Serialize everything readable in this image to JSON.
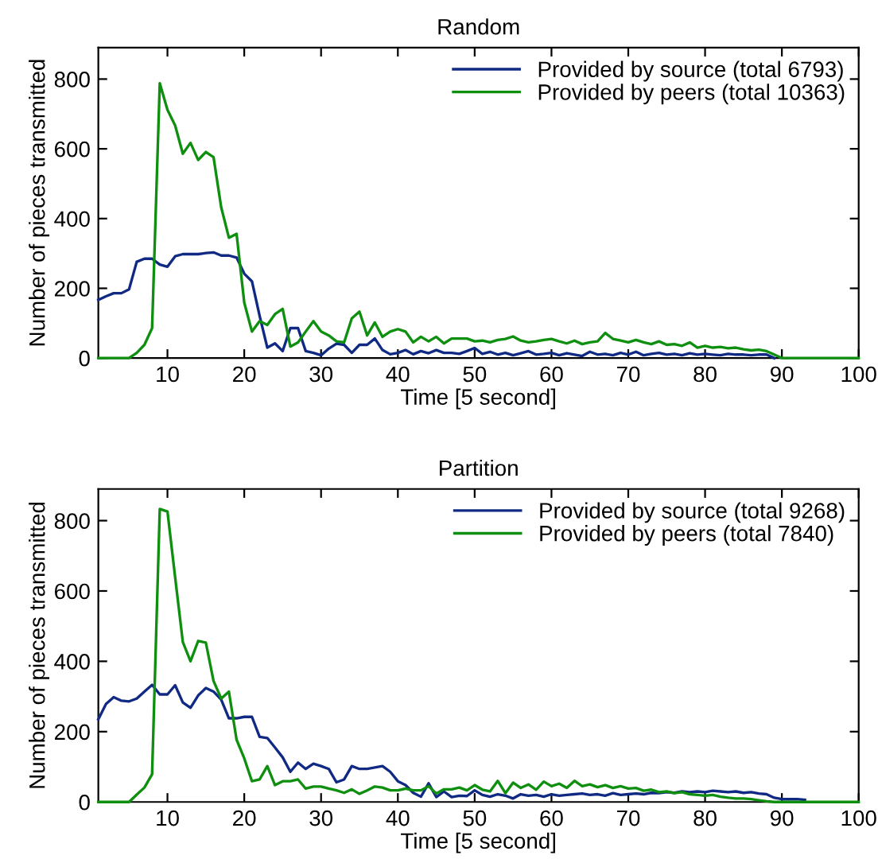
{
  "chart_data": [
    {
      "type": "line",
      "title": "Random",
      "x": [
        1,
        2,
        3,
        4,
        5,
        6,
        7,
        8,
        9,
        10,
        11,
        12,
        13,
        14,
        15,
        16,
        17,
        18,
        19,
        20,
        21,
        22,
        23,
        24,
        25,
        26,
        27,
        28,
        29,
        30,
        31,
        32,
        33,
        34,
        35,
        36,
        37,
        38,
        39,
        40,
        41,
        42,
        43,
        44,
        45,
        46,
        47,
        48,
        49,
        50,
        51,
        52,
        53,
        54,
        55,
        56,
        57,
        58,
        59,
        60,
        61,
        62,
        63,
        64,
        65,
        66,
        67,
        68,
        69,
        70,
        71,
        72,
        73,
        74,
        75,
        76,
        77,
        78,
        79,
        80,
        81,
        82,
        83,
        84,
        85,
        86,
        87,
        88,
        89,
        90,
        91,
        92,
        93,
        94,
        95,
        96,
        97,
        98,
        99,
        100
      ],
      "xlabel": "Time [5 second]",
      "ylabel": "Number of pieces transmitted",
      "xlim": [
        1,
        100
      ],
      "xticks": [
        10,
        20,
        30,
        40,
        50,
        60,
        70,
        80,
        90,
        100
      ],
      "ylim": [
        0,
        890
      ],
      "yticks": [
        0,
        200,
        400,
        600,
        800
      ],
      "grid": false,
      "legend": "top right",
      "marker": "none",
      "line_style": "solid",
      "series": [
        {
          "name": "Provided by source (total 6793)",
          "color": "#102a83",
          "values": [
            167,
            177,
            186,
            186,
            197,
            276,
            285,
            285,
            268,
            262,
            292,
            298,
            298,
            298,
            301,
            303,
            294,
            294,
            288,
            242,
            220,
            121,
            30,
            42,
            20,
            86,
            86,
            20,
            15,
            8,
            27,
            41,
            38,
            15,
            38,
            38,
            56,
            23,
            11,
            15,
            23,
            11,
            20,
            14,
            23,
            15,
            15,
            12,
            20,
            29,
            12,
            18,
            10,
            15,
            8,
            14,
            20,
            10,
            12,
            15,
            8,
            14,
            10,
            6,
            18,
            10,
            12,
            8,
            15,
            10,
            18,
            8,
            12,
            15,
            10,
            12,
            8,
            14,
            10,
            12,
            10,
            8,
            12,
            10,
            10,
            8,
            10,
            10,
            0,
            null,
            null,
            null,
            null,
            null,
            null,
            null,
            null,
            null,
            null,
            null
          ]
        },
        {
          "name": "Provided by peers (total 10363)",
          "color": "#0f8f0f",
          "values": [
            0,
            0,
            0,
            0,
            0,
            15,
            38,
            86,
            788,
            712,
            667,
            586,
            617,
            568,
            591,
            576,
            432,
            345,
            356,
            159,
            76,
            106,
            95,
            126,
            141,
            33,
            45,
            76,
            106,
            76,
            65,
            48,
            45,
            114,
            133,
            65,
            102,
            61,
            76,
            83,
            76,
            45,
            61,
            48,
            61,
            42,
            56,
            56,
            56,
            48,
            50,
            45,
            52,
            55,
            62,
            50,
            45,
            48,
            52,
            55,
            48,
            42,
            50,
            40,
            45,
            48,
            72,
            55,
            50,
            45,
            52,
            45,
            40,
            48,
            38,
            40,
            35,
            45,
            30,
            35,
            30,
            32,
            28,
            30,
            25,
            22,
            24,
            20,
            10,
            0,
            0,
            0,
            0,
            0,
            0,
            0,
            0,
            0,
            0,
            0
          ]
        }
      ]
    },
    {
      "type": "line",
      "title": "Partition",
      "x": [
        1,
        2,
        3,
        4,
        5,
        6,
        7,
        8,
        9,
        10,
        11,
        12,
        13,
        14,
        15,
        16,
        17,
        18,
        19,
        20,
        21,
        22,
        23,
        24,
        25,
        26,
        27,
        28,
        29,
        30,
        31,
        32,
        33,
        34,
        35,
        36,
        37,
        38,
        39,
        40,
        41,
        42,
        43,
        44,
        45,
        46,
        47,
        48,
        49,
        50,
        51,
        52,
        53,
        54,
        55,
        56,
        57,
        58,
        59,
        60,
        61,
        62,
        63,
        64,
        65,
        66,
        67,
        68,
        69,
        70,
        71,
        72,
        73,
        74,
        75,
        76,
        77,
        78,
        79,
        80,
        81,
        82,
        83,
        84,
        85,
        86,
        87,
        88,
        89,
        90,
        91,
        92,
        93,
        94,
        95,
        96,
        97,
        98,
        99,
        100
      ],
      "xlabel": "Time [5 second]",
      "ylabel": "Number of pieces transmitted",
      "xlim": [
        1,
        100
      ],
      "xticks": [
        10,
        20,
        30,
        40,
        50,
        60,
        70,
        80,
        90,
        100
      ],
      "ylim": [
        0,
        890
      ],
      "yticks": [
        0,
        200,
        400,
        600,
        800
      ],
      "grid": false,
      "legend": "top right",
      "marker": "none",
      "line_style": "solid",
      "series": [
        {
          "name": "Provided by source (total 9268)",
          "color": "#102a83",
          "values": [
            235,
            279,
            298,
            288,
            286,
            294,
            314,
            333,
            306,
            306,
            332,
            283,
            268,
            303,
            324,
            314,
            291,
            238,
            238,
            242,
            242,
            185,
            182,
            155,
            127,
            86,
            112,
            94,
            109,
            102,
            94,
            56,
            64,
            102,
            94,
            94,
            98,
            102,
            86,
            59,
            48,
            26,
            15,
            53,
            14,
            30,
            14,
            18,
            17,
            33,
            20,
            15,
            22,
            18,
            10,
            22,
            18,
            20,
            15,
            22,
            18,
            20,
            22,
            24,
            20,
            22,
            18,
            25,
            20,
            22,
            24,
            22,
            26,
            25,
            28,
            26,
            30,
            28,
            30,
            28,
            32,
            30,
            28,
            30,
            26,
            28,
            24,
            22,
            12,
            8,
            8,
            8,
            6,
            null,
            null,
            null,
            null,
            null,
            null,
            null
          ]
        },
        {
          "name": "Provided by peers (total 7840)",
          "color": "#0f8f0f",
          "values": [
            0,
            0,
            0,
            0,
            0,
            21,
            41,
            79,
            833,
            826,
            639,
            455,
            400,
            458,
            453,
            344,
            294,
            314,
            177,
            124,
            59,
            64,
            102,
            48,
            59,
            59,
            64,
            38,
            44,
            44,
            38,
            33,
            26,
            36,
            23,
            33,
            44,
            41,
            33,
            33,
            38,
            33,
            33,
            45,
            24,
            36,
            36,
            41,
            33,
            48,
            35,
            30,
            60,
            25,
            55,
            40,
            50,
            35,
            58,
            45,
            52,
            40,
            60,
            45,
            50,
            42,
            48,
            40,
            45,
            38,
            40,
            32,
            35,
            28,
            30,
            25,
            28,
            22,
            20,
            18,
            20,
            15,
            12,
            10,
            10,
            8,
            5,
            2,
            0,
            0,
            0,
            0,
            0,
            0,
            0,
            0,
            0,
            0,
            0,
            0
          ]
        }
      ]
    }
  ]
}
